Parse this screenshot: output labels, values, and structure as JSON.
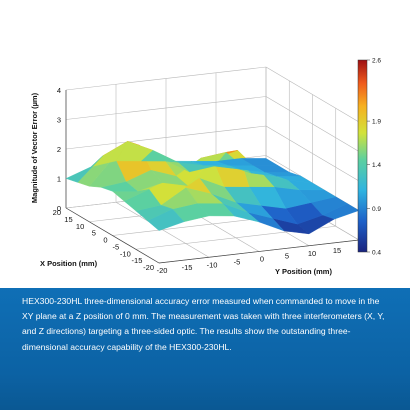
{
  "chart_data": {
    "type": "surface3d",
    "zlabel": "Magnitude of Vector Error (µm)",
    "xlabel": "X Position (mm)",
    "ylabel": "Y Position (mm)",
    "x_ticks": [
      "20",
      "15",
      "10",
      "5",
      "0",
      "-5",
      "-10",
      "-15",
      "-20"
    ],
    "y_ticks": [
      "-20",
      "-15",
      "-10",
      "-5",
      "0",
      "5",
      "10",
      "15",
      "20"
    ],
    "z_ticks": [
      "0",
      "1",
      "2",
      "3",
      "4"
    ],
    "zlim": [
      0,
      4
    ],
    "colorbar": {
      "min": 0.4,
      "max": 2.6,
      "ticks": [
        "2.6",
        "1.9",
        "1.4",
        "0.9",
        "0.4"
      ]
    },
    "x": [
      20,
      15,
      10,
      5,
      0,
      -5,
      -10,
      -15,
      -20
    ],
    "y": [
      -20,
      -15,
      -10,
      -5,
      0,
      5,
      10,
      15,
      20
    ],
    "z": [
      [
        1.0,
        1.1,
        1.2,
        1.4,
        1.5,
        1.4,
        1.3,
        1.2,
        1.1
      ],
      [
        1.3,
        1.9,
        2.1,
        1.5,
        1.4,
        1.7,
        1.4,
        1.5,
        1.3
      ],
      [
        1.4,
        2.3,
        2.4,
        1.8,
        1.6,
        2.1,
        1.9,
        1.6,
        1.4
      ],
      [
        1.3,
        1.9,
        1.8,
        1.5,
        1.4,
        1.9,
        1.6,
        1.5,
        1.3
      ],
      [
        1.2,
        1.4,
        1.3,
        2.0,
        2.2,
        1.5,
        1.2,
        1.1,
        1.0
      ],
      [
        1.1,
        1.2,
        1.4,
        2.1,
        2.4,
        1.4,
        1.0,
        0.8,
        0.6
      ],
      [
        1.0,
        1.1,
        1.2,
        1.3,
        1.5,
        1.3,
        0.8,
        0.5,
        0.4
      ],
      [
        1.0,
        1.0,
        1.0,
        1.1,
        1.2,
        1.1,
        0.9,
        0.7,
        0.8
      ],
      [
        0.9,
        0.9,
        0.9,
        1.0,
        1.0,
        1.0,
        1.0,
        1.0,
        1.0
      ]
    ]
  },
  "caption": "HEX300-230HL three-dimensional accuracy error measured when commanded to move in the XY plane at a Z position of 0 mm. The measurement was taken with three interferometers (X, Y, and Z directions) targeting a three-sided optic. The results show the outstanding three-dimensional accuracy capability of the HEX300-230HL."
}
